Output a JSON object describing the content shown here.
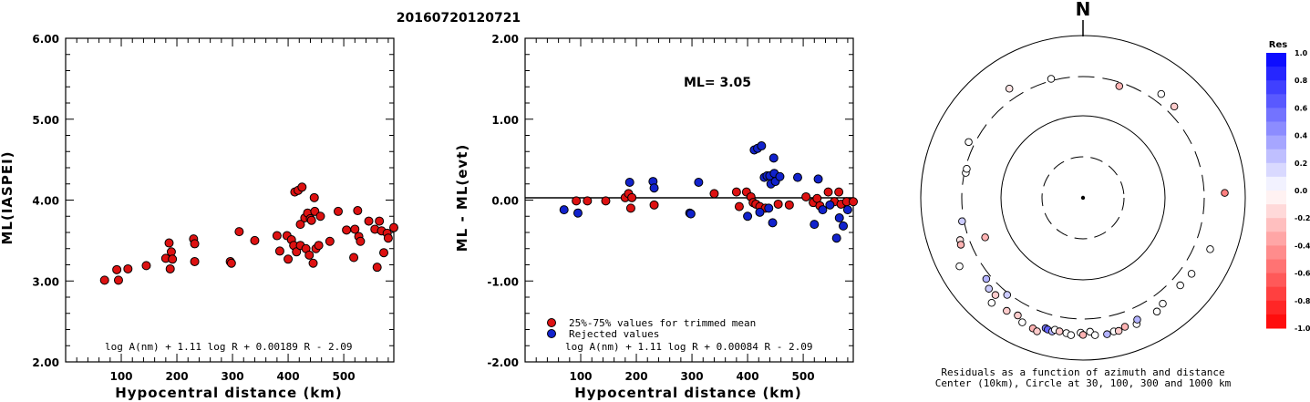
{
  "page_title": "20160720120721",
  "chart_data": [
    {
      "type": "scatter",
      "xlabel": "Hypocentral distance (km)",
      "ylabel": "ML(IASPEI)",
      "xlim": [
        0,
        590
      ],
      "ylim": [
        2.0,
        6.0
      ],
      "xticks": [
        "100",
        "200",
        "300",
        "400",
        "500"
      ],
      "yticks": [
        "2.00",
        "3.00",
        "4.00",
        "5.00",
        "6.00"
      ],
      "formula": "log A(nm) + 1.11 log R + 0.00189 R - 2.09",
      "point_color": "#dd1111",
      "points": [
        [
          70,
          3.01
        ],
        [
          92,
          3.14
        ],
        [
          95,
          3.01
        ],
        [
          112,
          3.15
        ],
        [
          145,
          3.19
        ],
        [
          180,
          3.28
        ],
        [
          186,
          3.47
        ],
        [
          188,
          3.15
        ],
        [
          190,
          3.36
        ],
        [
          192,
          3.27
        ],
        [
          230,
          3.52
        ],
        [
          232,
          3.46
        ],
        [
          232,
          3.24
        ],
        [
          296,
          3.24
        ],
        [
          298,
          3.22
        ],
        [
          312,
          3.61
        ],
        [
          340,
          3.5
        ],
        [
          380,
          3.56
        ],
        [
          385,
          3.37
        ],
        [
          398,
          3.56
        ],
        [
          400,
          3.27
        ],
        [
          406,
          3.51
        ],
        [
          410,
          3.44
        ],
        [
          412,
          4.1
        ],
        [
          415,
          3.36
        ],
        [
          418,
          4.12
        ],
        [
          422,
          3.44
        ],
        [
          422,
          3.7
        ],
        [
          425,
          4.16
        ],
        [
          430,
          3.78
        ],
        [
          432,
          3.4
        ],
        [
          435,
          3.84
        ],
        [
          438,
          3.32
        ],
        [
          440,
          3.77
        ],
        [
          442,
          3.75
        ],
        [
          445,
          3.22
        ],
        [
          447,
          4.03
        ],
        [
          448,
          3.86
        ],
        [
          450,
          3.4
        ],
        [
          455,
          3.44
        ],
        [
          458,
          3.8
        ],
        [
          475,
          3.49
        ],
        [
          490,
          3.86
        ],
        [
          505,
          3.63
        ],
        [
          518,
          3.29
        ],
        [
          520,
          3.64
        ],
        [
          525,
          3.87
        ],
        [
          527,
          3.55
        ],
        [
          530,
          3.49
        ],
        [
          545,
          3.74
        ],
        [
          556,
          3.64
        ],
        [
          560,
          3.17
        ],
        [
          564,
          3.74
        ],
        [
          568,
          3.62
        ],
        [
          572,
          3.35
        ],
        [
          578,
          3.59
        ],
        [
          580,
          3.53
        ],
        [
          590,
          3.66
        ]
      ]
    },
    {
      "type": "scatter",
      "xlabel": "Hypocentral distance (km)",
      "ylabel": "ML - ML(evt)",
      "xlim": [
        0,
        590
      ],
      "ylim": [
        -2.0,
        2.0
      ],
      "xticks": [
        "100",
        "200",
        "300",
        "400",
        "500"
      ],
      "yticks": [
        "-2.00",
        "-1.00",
        "0.00",
        "1.00",
        "2.00"
      ],
      "annotation": "ML= 3.05",
      "legend": [
        {
          "label": "25%-75% values for trimmed mean",
          "color": "#dd1111"
        },
        {
          "label": "Rejected values",
          "color": "#1122cc"
        }
      ],
      "formula": "log A(nm) + 1.11 log R + 0.00084 R - 2.09",
      "series": [
        {
          "name": "25%-75% values for trimmed mean",
          "color": "#dd1111",
          "points": [
            [
              92,
              -0.01
            ],
            [
              112,
              -0.01
            ],
            [
              145,
              -0.01
            ],
            [
              180,
              0.03
            ],
            [
              186,
              0.08
            ],
            [
              190,
              -0.1
            ],
            [
              192,
              0.03
            ],
            [
              232,
              -0.06
            ],
            [
              340,
              0.08
            ],
            [
              380,
              0.1
            ],
            [
              385,
              -0.08
            ],
            [
              398,
              0.1
            ],
            [
              406,
              0.04
            ],
            [
              410,
              -0.03
            ],
            [
              415,
              -0.05
            ],
            [
              422,
              -0.08
            ],
            [
              432,
              -0.1
            ],
            [
              455,
              -0.05
            ],
            [
              475,
              -0.06
            ],
            [
              505,
              0.04
            ],
            [
              518,
              -0.03
            ],
            [
              525,
              0.02
            ],
            [
              530,
              -0.07
            ],
            [
              545,
              0.1
            ],
            [
              556,
              -0.02
            ],
            [
              564,
              0.1
            ],
            [
              568,
              -0.05
            ],
            [
              578,
              -0.02
            ],
            [
              590,
              -0.02
            ]
          ]
        },
        {
          "name": "Rejected values",
          "color": "#1122cc",
          "points": [
            [
              70,
              -0.12
            ],
            [
              95,
              -0.16
            ],
            [
              188,
              0.22
            ],
            [
              230,
              0.23
            ],
            [
              232,
              0.15
            ],
            [
              296,
              -0.16
            ],
            [
              298,
              -0.17
            ],
            [
              312,
              0.22
            ],
            [
              400,
              -0.2
            ],
            [
              412,
              0.62
            ],
            [
              418,
              0.64
            ],
            [
              422,
              -0.15
            ],
            [
              425,
              0.67
            ],
            [
              430,
              0.28
            ],
            [
              435,
              0.3
            ],
            [
              438,
              -0.1
            ],
            [
              440,
              0.3
            ],
            [
              442,
              0.2
            ],
            [
              445,
              -0.28
            ],
            [
              447,
              0.52
            ],
            [
              448,
              0.33
            ],
            [
              450,
              0.23
            ],
            [
              458,
              0.29
            ],
            [
              490,
              0.28
            ],
            [
              520,
              -0.3
            ],
            [
              527,
              0.26
            ],
            [
              535,
              -0.12
            ],
            [
              548,
              -0.06
            ],
            [
              560,
              -0.47
            ],
            [
              565,
              -0.22
            ],
            [
              572,
              -0.32
            ],
            [
              580,
              -0.12
            ]
          ]
        }
      ]
    },
    {
      "type": "scatter",
      "subtype": "polar",
      "north_label": "N",
      "caption_line1": "Residuals as a function of azimuth and distance",
      "caption_line2": "Center (10km), Circle at 30, 100, 300 and 1000 km",
      "rings_km": [
        30,
        100,
        300,
        1000
      ],
      "colorbar_title": "Res",
      "colorbar_ticks": [
        "1.0",
        "0.8",
        "0.6",
        "0.4",
        "0.2",
        "0.0",
        "-0.2",
        "-0.4",
        "-0.6",
        "-0.8",
        "-1.0"
      ],
      "colorbar_range": [
        -1.0,
        1.0
      ],
      "points": [
        {
          "az": 326,
          "dist": 420,
          "res": -0.1
        },
        {
          "az": 345,
          "dist": 330,
          "res": 0.0
        },
        {
          "az": 18,
          "dist": 280,
          "res": -0.3
        },
        {
          "az": 37,
          "dist": 400,
          "res": 0.0
        },
        {
          "az": 45,
          "dist": 390,
          "res": -0.2
        },
        {
          "az": 88,
          "dist": 560,
          "res": -0.5
        },
        {
          "az": 112,
          "dist": 490,
          "res": 0.0
        },
        {
          "az": 125,
          "dist": 430,
          "res": 0.0
        },
        {
          "az": 296,
          "dist": 370,
          "res": 0.0
        },
        {
          "az": 282,
          "dist": 300,
          "res": 0.0
        },
        {
          "az": 284,
          "dist": 300,
          "res": 0.0
        },
        {
          "az": 259,
          "dist": 330,
          "res": 0.2
        },
        {
          "az": 251,
          "dist": 400,
          "res": -0.1
        },
        {
          "az": 249,
          "dist": 410,
          "res": -0.3
        },
        {
          "az": 248,
          "dist": 200,
          "res": -0.3
        },
        {
          "az": 241,
          "dist": 550,
          "res": 0.0
        },
        {
          "az": 230,
          "dist": 360,
          "res": 0.3
        },
        {
          "az": 226,
          "dist": 410,
          "res": 0.2
        },
        {
          "az": 218,
          "dist": 330,
          "res": 0.2
        },
        {
          "az": 222,
          "dist": 410,
          "res": -0.2
        },
        {
          "az": 221,
          "dist": 520,
          "res": 0.0
        },
        {
          "az": 214,
          "dist": 480,
          "res": -0.2
        },
        {
          "az": 209,
          "dist": 455,
          "res": -0.2
        },
        {
          "az": 206,
          "dist": 510,
          "res": 0.0
        },
        {
          "az": 201,
          "dist": 530,
          "res": -0.3
        },
        {
          "az": 199,
          "dist": 550,
          "res": -0.2
        },
        {
          "az": 196,
          "dist": 470,
          "res": 0.5
        },
        {
          "az": 195,
          "dist": 480,
          "res": 0.6
        },
        {
          "az": 193,
          "dist": 490,
          "res": 0.3
        },
        {
          "az": 192,
          "dist": 460,
          "res": 0.0
        },
        {
          "az": 190,
          "dist": 470,
          "res": -0.2
        },
        {
          "az": 187,
          "dist": 480,
          "res": 0.0
        },
        {
          "az": 185,
          "dist": 500,
          "res": 0.0
        },
        {
          "az": 181,
          "dist": 460,
          "res": 0.0
        },
        {
          "az": 180,
          "dist": 490,
          "res": -0.3
        },
        {
          "az": 177,
          "dist": 450,
          "res": 0.0
        },
        {
          "az": 175,
          "dist": 500,
          "res": 0.0
        },
        {
          "az": 170,
          "dist": 510,
          "res": 0.3
        },
        {
          "az": 167,
          "dist": 490,
          "res": 0.0
        },
        {
          "az": 165,
          "dist": 500,
          "res": -0.2
        },
        {
          "az": 162,
          "dist": 470,
          "res": -0.3
        },
        {
          "az": 157,
          "dist": 490,
          "res": 0.0
        },
        {
          "az": 156,
          "dist": 440,
          "res": 0.3
        },
        {
          "az": 147,
          "dist": 470,
          "res": 0.0
        },
        {
          "az": 132,
          "dist": 410,
          "res": 0.0
        },
        {
          "az": 143,
          "dist": 430,
          "res": 0.0
        }
      ]
    }
  ]
}
